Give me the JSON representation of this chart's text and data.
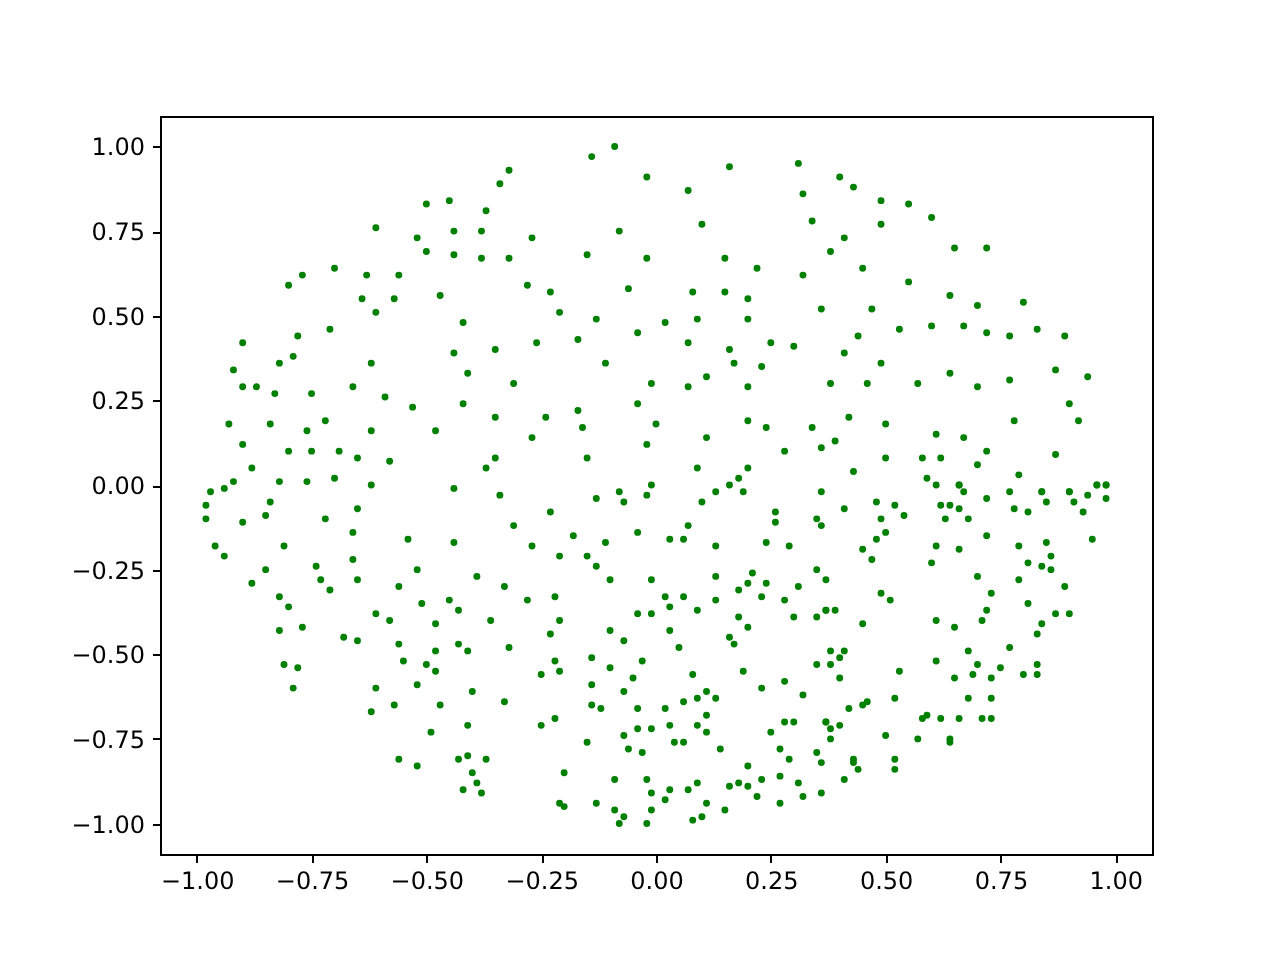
{
  "chart_data": {
    "type": "scatter",
    "marker": "circle",
    "xlim": [
      -1.08,
      1.08
    ],
    "ylim": [
      -1.09,
      1.09
    ],
    "xticks": [
      {
        "value": -1,
        "label": "−1.00"
      },
      {
        "value": -0.75,
        "label": "−0.75"
      },
      {
        "value": -0.5,
        "label": "−0.50"
      },
      {
        "value": -0.25,
        "label": "−0.25"
      },
      {
        "value": 0,
        "label": "0.00"
      },
      {
        "value": 0.25,
        "label": "0.25"
      },
      {
        "value": 0.5,
        "label": "0.50"
      },
      {
        "value": 0.75,
        "label": "0.75"
      },
      {
        "value": 1,
        "label": "1.00"
      }
    ],
    "yticks": [
      {
        "value": -1,
        "label": "−1.00"
      },
      {
        "value": -0.75,
        "label": "−0.75"
      },
      {
        "value": -0.5,
        "label": "−0.50"
      },
      {
        "value": -0.25,
        "label": "−0.25"
      },
      {
        "value": 0,
        "label": "0.00"
      },
      {
        "value": 0.25,
        "label": "0.25"
      },
      {
        "value": 0.5,
        "label": "0.50"
      },
      {
        "value": 0.75,
        "label": "0.75"
      },
      {
        "value": 1,
        "label": "1.00"
      }
    ],
    "series": [
      {
        "color": "#008000",
        "x": [
          -0.5,
          -0.61,
          -0.52,
          -0.8,
          -0.7,
          -0.9,
          -0.92,
          -0.9,
          -0.83,
          -0.78,
          -0.66,
          -0.62,
          -0.44,
          -0.41,
          -0.42,
          -0.48,
          -0.93,
          -0.88,
          -0.75,
          -0.65,
          -0.44,
          -0.97,
          -0.58,
          -0.45,
          -0.37,
          -0.34,
          -0.44,
          -0.38,
          -0.44,
          -0.38,
          -0.5,
          -0.56,
          -0.63,
          -0.77,
          -0.64,
          -0.57,
          -0.47,
          -0.61,
          -0.71,
          -0.82,
          -0.79,
          -0.87,
          -0.75,
          -0.59,
          -0.53,
          -0.42,
          -0.84,
          -0.76,
          -0.72,
          -0.62,
          -0.9,
          -0.8,
          -0.69,
          -0.37,
          -0.82,
          -0.76,
          -0.7,
          -0.62,
          -0.94,
          -0.09,
          -0.32,
          -0.14,
          0.16,
          0.31,
          0.32,
          -0.02,
          0.07,
          0.1,
          0.34,
          -0.27,
          -0.08,
          -0.32,
          -0.15,
          -0.02,
          0.15,
          0.22,
          0.32,
          -0.28,
          -0.23,
          -0.06,
          0.08,
          0.15,
          0.2,
          -0.21,
          -0.13,
          0.02,
          0.09,
          0.2,
          0.36,
          -0.35,
          -0.26,
          -0.17,
          -0.04,
          0.07,
          0.16,
          0.25,
          0.3,
          -0.11,
          -0.01,
          0.11,
          0.17,
          0.23,
          -0.31,
          -0.24,
          -0.17,
          -0.04,
          0.07,
          0.2,
          -0.35,
          -0.27,
          -0.16,
          0.0,
          0.11,
          0.2,
          0.24,
          0.34,
          -0.35,
          -0.15,
          -0.02,
          0.09,
          0.2,
          0.28,
          -0.08,
          -0.01,
          0.18,
          0.36,
          0.4,
          0.43,
          0.49,
          0.55,
          0.6,
          0.49,
          0.41,
          0.38,
          0.45,
          0.65,
          0.72,
          0.55,
          0.64,
          0.7,
          0.8,
          0.47,
          0.53,
          0.6,
          0.67,
          0.72,
          0.77,
          0.83,
          0.89,
          0.44,
          0.41,
          0.49,
          0.57,
          0.64,
          0.7,
          0.77,
          0.87,
          0.94,
          0.9,
          0.92,
          0.78,
          0.67,
          0.61,
          0.72,
          0.87,
          0.42,
          0.5,
          0.46,
          0.38,
          0.39,
          0.5,
          0.58,
          0.62,
          0.7,
          0.79,
          0.59,
          0.66,
          0.84,
          0.9,
          0.96,
          0.98,
          0.43,
          -0.98,
          -0.98,
          -0.96,
          -0.94,
          -0.9,
          -0.85,
          -0.84,
          -0.92,
          -0.88,
          -0.85,
          -0.81,
          -0.82,
          -0.8,
          -0.82,
          -0.81,
          -0.79,
          -0.78,
          -0.77,
          -0.74,
          -0.73,
          -0.72,
          -0.71,
          -0.66,
          -0.65,
          -0.66,
          -0.65,
          -0.68,
          -0.65,
          -0.62,
          -0.61,
          -0.61,
          -0.58,
          -0.57,
          -0.56,
          -0.56,
          -0.55,
          -0.54,
          -0.52,
          -0.52,
          -0.56,
          -0.52,
          -0.5,
          -0.51,
          -0.48,
          -0.47,
          -0.49,
          -0.48,
          -0.48,
          -0.45,
          -0.44,
          -0.43,
          -0.43,
          -0.41,
          -0.4,
          -0.41,
          -0.41,
          -0.43,
          -0.4,
          -0.39,
          -0.42,
          -0.38,
          -0.37,
          -0.36,
          -0.39,
          -0.34,
          -0.31,
          -0.33,
          -0.32,
          -0.33,
          -0.28,
          -0.25,
          -0.25,
          -0.22,
          -0.2,
          -0.21,
          -0.2,
          -0.23,
          -0.27,
          -0.21,
          -0.18,
          -0.22,
          -0.21,
          -0.23,
          -0.22,
          -0.21,
          -0.15,
          -0.13,
          -0.13,
          -0.11,
          -0.1,
          -0.1,
          -0.07,
          -0.14,
          -0.14,
          -0.14,
          -0.15,
          -0.12,
          -0.1,
          -0.07,
          -0.05,
          -0.09,
          -0.13,
          -0.09,
          -0.08,
          -0.07,
          -0.02,
          -0.01,
          -0.01,
          -0.02,
          -0.03,
          -0.07,
          -0.06,
          -0.04,
          -0.01,
          -0.04,
          -0.03,
          -0.04,
          -0.01,
          -0.01,
          -0.04,
          -0.07,
          -0.02,
          0.03,
          0.03,
          0.02,
          0.03,
          0.05,
          0.08,
          0.02,
          0.03,
          0.04,
          0.06,
          0.02,
          0.03,
          0.08,
          0.1,
          0.11,
          0.09,
          0.07,
          0.15,
          0.16,
          0.14,
          0.11,
          0.09,
          0.11,
          0.06,
          0.09,
          0.13,
          0.11,
          0.09,
          0.06,
          0.13,
          0.13,
          0.07,
          0.06,
          0.13,
          0.1,
          0.13,
          0.19,
          0.16,
          0.16,
          0.17,
          0.19,
          0.2,
          0.18,
          0.18,
          0.2,
          0.21,
          0.24,
          0.23,
          0.23,
          0.25,
          0.2,
          0.18,
          0.2,
          0.22,
          0.23,
          0.27,
          0.27,
          0.27,
          0.29,
          0.28,
          0.28,
          0.3,
          0.31,
          0.32,
          0.32,
          0.35,
          0.35,
          0.37,
          0.28,
          0.3,
          0.31,
          0.35,
          0.35,
          0.37,
          0.29,
          0.24,
          0.26,
          0.26,
          0.35,
          0.36,
          0.36,
          0.41,
          0.48,
          0.52,
          0.49,
          0.5,
          0.48,
          0.54,
          0.61,
          0.66,
          0.67,
          0.62,
          0.64,
          0.66,
          0.63,
          0.68,
          0.72,
          0.77,
          0.78,
          0.81,
          0.84,
          0.85,
          0.9,
          0.91,
          0.94,
          0.96,
          0.98,
          0.98,
          0.93,
          0.95,
          0.85,
          0.86,
          0.84,
          0.86,
          0.89,
          0.79,
          0.81,
          0.79,
          0.72,
          0.66,
          0.61,
          0.6,
          0.7,
          0.73,
          0.72,
          0.71,
          0.81,
          0.87,
          0.9,
          0.84,
          0.83,
          0.77,
          0.83,
          0.8,
          0.83,
          0.75,
          0.73,
          0.7,
          0.69,
          0.68,
          0.65,
          0.61,
          0.65,
          0.61,
          0.51,
          0.49,
          0.45,
          0.47,
          0.37,
          0.37,
          0.39,
          0.45,
          0.38,
          0.41,
          0.4,
          0.38,
          0.4,
          0.53,
          0.52,
          0.46,
          0.45,
          0.42,
          0.37,
          0.38,
          0.4,
          0.38,
          0.5,
          0.58,
          0.59,
          0.62,
          0.66,
          0.68,
          0.71,
          0.73,
          0.73,
          0.57,
          0.64,
          0.64,
          0.43,
          0.43,
          0.44,
          0.41,
          0.52,
          0.52,
          0.36,
          0.36
        ],
        "values": [
          0.83,
          0.76,
          0.73,
          0.59,
          0.64,
          0.42,
          0.34,
          0.29,
          0.27,
          0.44,
          0.29,
          0.36,
          0.39,
          0.33,
          0.48,
          0.16,
          0.18,
          0.05,
          0.1,
          0.08,
          -0.01,
          -0.02,
          0.07,
          0.84,
          0.81,
          0.89,
          0.75,
          0.75,
          0.68,
          0.67,
          0.69,
          0.62,
          0.62,
          0.62,
          0.55,
          0.55,
          0.56,
          0.51,
          0.46,
          0.36,
          0.38,
          0.29,
          0.27,
          0.26,
          0.23,
          0.24,
          0.18,
          0.16,
          0.19,
          0.16,
          0.12,
          0.1,
          0.1,
          0.05,
          0.01,
          0.01,
          0.02,
          0.0,
          -0.01,
          1.0,
          0.93,
          0.97,
          0.94,
          0.95,
          0.86,
          0.91,
          0.87,
          0.77,
          0.78,
          0.73,
          0.75,
          0.67,
          0.68,
          0.67,
          0.67,
          0.64,
          0.62,
          0.59,
          0.57,
          0.58,
          0.57,
          0.57,
          0.55,
          0.51,
          0.49,
          0.48,
          0.49,
          0.49,
          0.52,
          0.4,
          0.42,
          0.43,
          0.45,
          0.42,
          0.4,
          0.42,
          0.41,
          0.36,
          0.3,
          0.32,
          0.36,
          0.35,
          0.3,
          0.2,
          0.22,
          0.24,
          0.29,
          0.29,
          0.2,
          0.14,
          0.17,
          0.18,
          0.14,
          0.19,
          0.17,
          0.17,
          0.08,
          0.08,
          0.12,
          0.05,
          0.05,
          0.1,
          -0.02,
          0.0,
          0.02,
          0.11,
          0.91,
          0.88,
          0.84,
          0.83,
          0.79,
          0.77,
          0.73,
          0.69,
          0.64,
          0.7,
          0.7,
          0.6,
          0.56,
          0.53,
          0.54,
          0.52,
          0.46,
          0.47,
          0.47,
          0.45,
          0.44,
          0.46,
          0.44,
          0.44,
          0.39,
          0.36,
          0.3,
          0.33,
          0.29,
          0.31,
          0.34,
          0.32,
          0.24,
          0.19,
          0.19,
          0.14,
          0.15,
          0.1,
          0.09,
          0.2,
          0.18,
          0.3,
          0.3,
          0.13,
          0.08,
          0.08,
          0.08,
          0.06,
          0.03,
          0.02,
          0.0,
          -0.02,
          -0.02,
          0.0,
          0.0,
          0.04,
          -0.06,
          -0.1,
          -0.18,
          -0.21,
          -0.11,
          -0.09,
          -0.05,
          0.01,
          -0.29,
          -0.25,
          -0.18,
          -0.33,
          -0.36,
          -0.43,
          -0.53,
          -0.6,
          -0.54,
          -0.42,
          -0.24,
          -0.28,
          -0.1,
          -0.31,
          -0.14,
          -0.07,
          -0.22,
          -0.28,
          -0.45,
          -0.46,
          -0.67,
          -0.6,
          -0.38,
          -0.4,
          -0.65,
          -0.3,
          -0.47,
          -0.52,
          -0.16,
          -0.25,
          -0.59,
          -0.81,
          -0.83,
          -0.53,
          -0.35,
          -0.49,
          -0.65,
          -0.73,
          -0.55,
          -0.41,
          -0.34,
          -0.17,
          -0.37,
          -0.47,
          -0.49,
          -0.61,
          -0.71,
          -0.8,
          -0.81,
          -0.85,
          -0.88,
          -0.9,
          -0.91,
          -0.81,
          -0.4,
          -0.27,
          -0.03,
          -0.12,
          -0.3,
          -0.48,
          -0.64,
          -0.34,
          -0.56,
          -0.71,
          -0.69,
          -0.85,
          -0.94,
          -0.95,
          -0.08,
          -0.18,
          -0.21,
          -0.15,
          -0.33,
          -0.4,
          -0.44,
          -0.52,
          -0.55,
          -0.21,
          -0.24,
          -0.04,
          -0.17,
          -0.28,
          -0.43,
          -0.46,
          -0.51,
          -0.59,
          -0.65,
          -0.76,
          -0.66,
          -0.54,
          -0.61,
          -0.57,
          -0.87,
          -0.94,
          -0.96,
          -1.0,
          -0.98,
          -1.0,
          -0.96,
          -0.91,
          -0.87,
          -0.79,
          -0.74,
          -0.78,
          -0.72,
          -0.72,
          -0.66,
          -0.52,
          -0.38,
          -0.38,
          -0.28,
          -0.14,
          -0.05,
          -0.03,
          -0.16,
          -0.36,
          -0.33,
          -0.43,
          -0.48,
          -0.56,
          -0.66,
          -0.71,
          -0.76,
          -0.76,
          -0.93,
          -0.9,
          -0.99,
          -0.98,
          -0.94,
          -0.88,
          -0.9,
          -0.96,
          -0.89,
          -0.78,
          -0.73,
          -0.71,
          -0.68,
          -0.64,
          -0.63,
          -0.63,
          -0.61,
          -0.37,
          -0.33,
          -0.34,
          -0.27,
          -0.12,
          -0.16,
          -0.18,
          -0.05,
          -0.02,
          -0.02,
          0.0,
          -0.45,
          -0.47,
          -0.55,
          -0.42,
          -0.39,
          -0.31,
          -0.29,
          -0.26,
          -0.29,
          -0.33,
          -0.6,
          -0.73,
          -0.83,
          -0.88,
          -0.89,
          -0.92,
          -0.87,
          -0.78,
          -0.86,
          -0.94,
          -0.81,
          -0.7,
          -0.58,
          -0.7,
          -0.88,
          -0.92,
          -0.62,
          -0.53,
          -0.79,
          -0.7,
          -0.34,
          -0.39,
          -0.3,
          -0.25,
          -0.39,
          -0.37,
          -0.18,
          -0.17,
          -0.08,
          -0.11,
          -0.1,
          -0.12,
          -0.02,
          -0.07,
          -0.05,
          -0.06,
          -0.1,
          -0.14,
          -0.16,
          -0.09,
          0.0,
          0.0,
          -0.02,
          -0.06,
          -0.06,
          -0.07,
          -0.1,
          -0.1,
          -0.04,
          -0.02,
          -0.07,
          -0.08,
          -0.02,
          -0.05,
          -0.02,
          -0.05,
          -0.03,
          0.0,
          0.0,
          -0.04,
          -0.08,
          -0.16,
          -0.17,
          -0.21,
          -0.24,
          -0.25,
          -0.3,
          -0.18,
          -0.23,
          -0.28,
          -0.15,
          -0.19,
          -0.18,
          -0.23,
          -0.27,
          -0.32,
          -0.37,
          -0.4,
          -0.35,
          -0.38,
          -0.38,
          -0.41,
          -0.44,
          -0.48,
          -0.53,
          -0.56,
          -0.56,
          -0.54,
          -0.57,
          -0.53,
          -0.56,
          -0.49,
          -0.57,
          -0.52,
          -0.42,
          -0.4,
          -0.34,
          -0.32,
          -0.19,
          -0.22,
          -0.28,
          -0.37,
          -0.37,
          -0.41,
          -0.49,
          -0.49,
          -0.51,
          -0.53,
          -0.57,
          -0.55,
          -0.63,
          -0.64,
          -0.65,
          -0.66,
          -0.7,
          -0.72,
          -0.71,
          -0.75,
          -0.74,
          -0.69,
          -0.68,
          -0.69,
          -0.69,
          -0.63,
          -0.69,
          -0.69,
          -0.63,
          -0.75,
          -0.75,
          -0.76,
          -0.81,
          -0.82,
          -0.84,
          -0.87,
          -0.81,
          -0.84,
          -0.91,
          -0.82
        ]
      }
    ]
  }
}
